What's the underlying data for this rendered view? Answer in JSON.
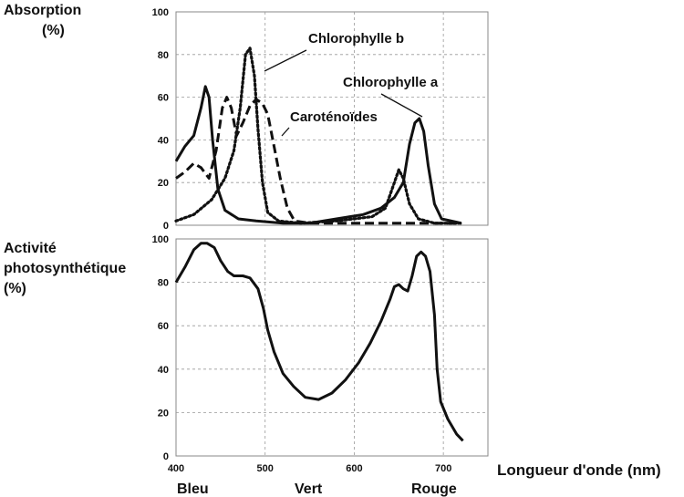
{
  "chart_data": [
    {
      "type": "line",
      "ylabel_lines": [
        "Absorption",
        "(%)"
      ],
      "xlim": [
        400,
        750
      ],
      "ylim": [
        0,
        100
      ],
      "grid": true,
      "x_ticks": [],
      "y_ticks": [
        0,
        20,
        40,
        60,
        80,
        100
      ],
      "series": [
        {
          "name": "Chlorophylle b",
          "style": "dotted",
          "color": "#111111",
          "points": [
            [
              400,
              2
            ],
            [
              420,
              5
            ],
            [
              440,
              12
            ],
            [
              455,
              22
            ],
            [
              465,
              35
            ],
            [
              472,
              55
            ],
            [
              478,
              80
            ],
            [
              483,
              83
            ],
            [
              488,
              70
            ],
            [
              492,
              45
            ],
            [
              497,
              20
            ],
            [
              503,
              6
            ],
            [
              515,
              2
            ],
            [
              540,
              1
            ],
            [
              580,
              2
            ],
            [
              620,
              4
            ],
            [
              635,
              8
            ],
            [
              645,
              20
            ],
            [
              650,
              26
            ],
            [
              655,
              22
            ],
            [
              662,
              10
            ],
            [
              672,
              3
            ],
            [
              690,
              1
            ],
            [
              720,
              1
            ]
          ]
        },
        {
          "name": "Chlorophylle a",
          "style": "solid",
          "color": "#111111",
          "points": [
            [
              400,
              30
            ],
            [
              410,
              37
            ],
            [
              420,
              42
            ],
            [
              428,
              55
            ],
            [
              433,
              65
            ],
            [
              437,
              60
            ],
            [
              441,
              40
            ],
            [
              447,
              17
            ],
            [
              455,
              7
            ],
            [
              470,
              3
            ],
            [
              490,
              2
            ],
            [
              520,
              1
            ],
            [
              550,
              1
            ],
            [
              580,
              3
            ],
            [
              610,
              5
            ],
            [
              630,
              8
            ],
            [
              645,
              13
            ],
            [
              655,
              20
            ],
            [
              662,
              38
            ],
            [
              668,
              48
            ],
            [
              673,
              50
            ],
            [
              678,
              44
            ],
            [
              683,
              28
            ],
            [
              690,
              10
            ],
            [
              698,
              3
            ],
            [
              720,
              1
            ]
          ]
        },
        {
          "name": "Caroténoïdes",
          "style": "dashed",
          "color": "#111111",
          "points": [
            [
              400,
              22
            ],
            [
              410,
              25
            ],
            [
              420,
              29
            ],
            [
              428,
              27
            ],
            [
              437,
              22
            ],
            [
              445,
              35
            ],
            [
              452,
              55
            ],
            [
              457,
              60
            ],
            [
              462,
              55
            ],
            [
              468,
              42
            ],
            [
              475,
              48
            ],
            [
              483,
              56
            ],
            [
              490,
              59
            ],
            [
              497,
              57
            ],
            [
              503,
              52
            ],
            [
              510,
              37
            ],
            [
              517,
              22
            ],
            [
              525,
              8
            ],
            [
              533,
              2
            ],
            [
              550,
              1
            ],
            [
              600,
              1
            ],
            [
              650,
              1
            ],
            [
              720,
              1
            ]
          ]
        }
      ],
      "annotations": [
        "Chlorophylle b",
        "Chlorophylle a",
        "Caroténoïdes"
      ]
    },
    {
      "type": "line",
      "ylabel_lines": [
        "Activité",
        "photosynthétique",
        "(%)"
      ],
      "xlabel": "Longueur d'onde (nm)",
      "xlim": [
        400,
        750
      ],
      "ylim": [
        0,
        100
      ],
      "grid": true,
      "x_ticks": [
        400,
        500,
        600,
        700
      ],
      "y_ticks": [
        0,
        20,
        40,
        60,
        80,
        100
      ],
      "color_labels": [
        "Bleu",
        "Vert",
        "Rouge"
      ],
      "series": [
        {
          "name": "",
          "style": "solid",
          "color": "#111111",
          "points": [
            [
              400,
              80
            ],
            [
              410,
              87
            ],
            [
              420,
              95
            ],
            [
              428,
              98
            ],
            [
              435,
              98
            ],
            [
              443,
              96
            ],
            [
              450,
              90
            ],
            [
              458,
              85
            ],
            [
              465,
              83
            ],
            [
              475,
              83
            ],
            [
              483,
              82
            ],
            [
              492,
              77
            ],
            [
              498,
              68
            ],
            [
              503,
              58
            ],
            [
              510,
              48
            ],
            [
              520,
              38
            ],
            [
              532,
              32
            ],
            [
              545,
              27
            ],
            [
              560,
              26
            ],
            [
              575,
              29
            ],
            [
              590,
              35
            ],
            [
              605,
              43
            ],
            [
              618,
              52
            ],
            [
              630,
              62
            ],
            [
              640,
              72
            ],
            [
              645,
              78
            ],
            [
              650,
              79
            ],
            [
              655,
              77
            ],
            [
              660,
              76
            ],
            [
              665,
              83
            ],
            [
              670,
              92
            ],
            [
              675,
              94
            ],
            [
              680,
              92
            ],
            [
              685,
              85
            ],
            [
              690,
              65
            ],
            [
              693,
              40
            ],
            [
              697,
              25
            ],
            [
              705,
              17
            ],
            [
              715,
              10
            ],
            [
              722,
              7
            ]
          ]
        }
      ]
    }
  ]
}
